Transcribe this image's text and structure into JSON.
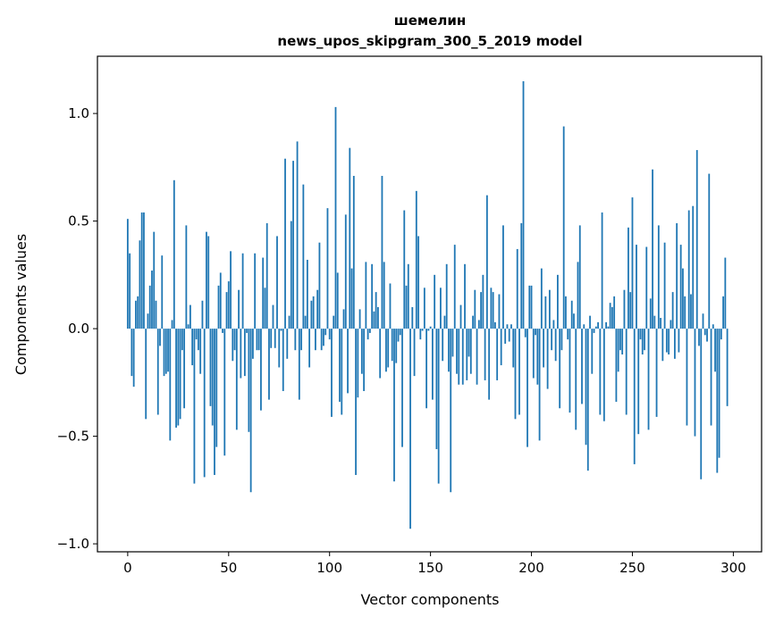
{
  "chart_data": {
    "type": "bar",
    "title": "шемелин",
    "subtitle": "news_upos_skipgram_300_5_2019 model",
    "xlabel": "Vector components",
    "ylabel": "Components values",
    "xlim": [
      -15,
      314
    ],
    "ylim": [
      -1.037,
      1.266
    ],
    "xticks": [
      0,
      50,
      100,
      150,
      200,
      250,
      300
    ],
    "xtick_labels": [
      "0",
      "50",
      "100",
      "150",
      "200",
      "250",
      "300"
    ],
    "yticks": [
      -1.0,
      -0.5,
      0.0,
      0.5,
      1.0
    ],
    "ytick_labels": [
      "−1.0",
      "−0.5",
      "0.0",
      "0.5",
      "1.0"
    ],
    "grid": false,
    "bar_color": "#1f77b4",
    "values": [
      0.51,
      0.35,
      -0.22,
      -0.27,
      0.13,
      0.15,
      0.41,
      0.54,
      0.54,
      -0.42,
      0.07,
      0.2,
      0.27,
      0.45,
      0.13,
      -0.4,
      -0.08,
      0.34,
      -0.22,
      -0.21,
      -0.2,
      -0.52,
      0.04,
      0.69,
      -0.46,
      -0.45,
      -0.42,
      -0.1,
      -0.37,
      0.48,
      0.02,
      0.11,
      -0.17,
      -0.72,
      -0.05,
      -0.1,
      -0.21,
      0.13,
      -0.69,
      0.45,
      0.43,
      -0.36,
      -0.45,
      -0.68,
      -0.55,
      0.2,
      0.26,
      -0.02,
      -0.59,
      0.17,
      0.22,
      0.36,
      -0.15,
      -0.1,
      -0.47,
      0.18,
      -0.23,
      0.35,
      -0.22,
      -0.02,
      -0.48,
      -0.76,
      -0.14,
      0.35,
      -0.1,
      -0.1,
      -0.38,
      0.33,
      0.19,
      0.49,
      -0.33,
      -0.09,
      0.11,
      -0.09,
      0.43,
      -0.18,
      -0.01,
      -0.29,
      0.79,
      -0.14,
      0.06,
      0.5,
      0.78,
      -0.1,
      0.87,
      -0.33,
      -0.1,
      0.67,
      0.06,
      0.32,
      -0.18,
      0.13,
      0.15,
      -0.1,
      0.18,
      0.4,
      -0.1,
      -0.08,
      -0.03,
      0.56,
      -0.05,
      -0.41,
      0.06,
      1.03,
      0.26,
      -0.34,
      -0.4,
      0.09,
      0.53,
      -0.3,
      0.84,
      0.28,
      0.71,
      -0.68,
      -0.32,
      0.09,
      -0.21,
      -0.29,
      0.31,
      -0.05,
      -0.02,
      0.3,
      0.08,
      0.17,
      0.1,
      -0.23,
      0.71,
      0.31,
      -0.2,
      -0.18,
      0.21,
      -0.15,
      -0.71,
      -0.16,
      -0.06,
      -0.03,
      -0.55,
      0.55,
      0.2,
      0.3,
      -0.93,
      0.1,
      -0.22,
      0.64,
      0.43,
      -0.05,
      -0.01,
      0.19,
      -0.37,
      -0.01,
      0.01,
      -0.33,
      0.25,
      -0.56,
      -0.72,
      0.19,
      -0.15,
      0.06,
      0.3,
      -0.2,
      -0.76,
      -0.13,
      0.39,
      -0.21,
      -0.26,
      0.11,
      -0.26,
      0.3,
      -0.24,
      -0.13,
      -0.21,
      0.06,
      0.18,
      -0.26,
      0.04,
      0.17,
      0.25,
      -0.24,
      0.62,
      -0.33,
      0.19,
      0.17,
      0.03,
      -0.24,
      0.16,
      -0.17,
      0.48,
      -0.07,
      0.02,
      -0.06,
      0.02,
      -0.18,
      -0.42,
      0.37,
      -0.4,
      0.49,
      1.15,
      -0.04,
      -0.55,
      0.2,
      0.2,
      -0.23,
      -0.03,
      -0.26,
      -0.52,
      0.28,
      -0.18,
      0.15,
      -0.28,
      0.18,
      -0.1,
      0.04,
      -0.15,
      0.25,
      -0.37,
      -0.1,
      0.94,
      0.15,
      -0.05,
      -0.39,
      0.13,
      0.07,
      -0.47,
      0.31,
      0.48,
      -0.35,
      0.02,
      -0.54,
      -0.66,
      0.06,
      -0.21,
      -0.02,
      0.01,
      0.03,
      -0.4,
      0.54,
      -0.43,
      0.03,
      0.01,
      0.12,
      0.1,
      0.15,
      -0.34,
      -0.2,
      -0.1,
      -0.12,
      0.18,
      -0.4,
      0.47,
      0.17,
      0.61,
      -0.63,
      0.39,
      -0.49,
      -0.05,
      -0.12,
      -0.1,
      0.38,
      -0.47,
      0.14,
      0.74,
      0.06,
      -0.41,
      0.48,
      0.05,
      -0.15,
      0.4,
      -0.11,
      -0.12,
      0.04,
      0.17,
      -0.14,
      0.49,
      -0.11,
      0.39,
      0.28,
      0.15,
      -0.45,
      0.55,
      0.16,
      0.57,
      -0.5,
      0.83,
      -0.08,
      -0.7,
      0.07,
      -0.03,
      -0.06,
      0.72,
      -0.45,
      0.02,
      -0.2,
      -0.67,
      -0.6,
      -0.05,
      0.15,
      0.33,
      -0.36
    ]
  }
}
